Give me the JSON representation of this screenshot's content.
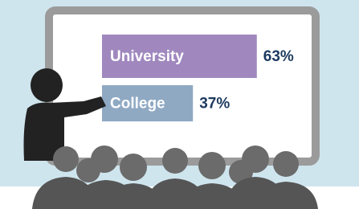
{
  "chart_data": {
    "type": "bar",
    "orientation": "horizontal",
    "categories": [
      "University",
      "College"
    ],
    "values": [
      63,
      37
    ],
    "value_labels": [
      "63%",
      "37%"
    ],
    "colors": [
      "#a088bf",
      "#8fa9c3"
    ],
    "label_color": "#1c3a5e"
  }
}
